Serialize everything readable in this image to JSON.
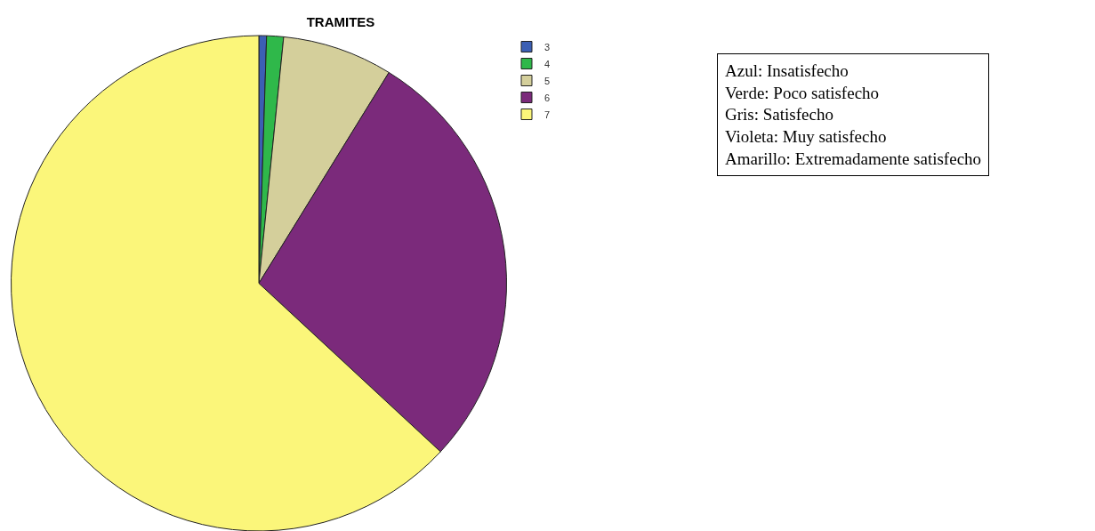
{
  "chart_data": {
    "type": "pie",
    "title": "TRAMITES",
    "categories": [
      "3",
      "4",
      "5",
      "6",
      "7"
    ],
    "values": [
      0.5,
      1.1,
      7.2,
      28.1,
      63.1
    ],
    "colors": [
      "#3c5fb4",
      "#2fb84a",
      "#d4cf9b",
      "#7b2a7b",
      "#fbf67a"
    ],
    "legend": "top right",
    "annotations": [
      "Azul: Insatisfecho\nVerde: Poco satisfecho\nGris: Satisfecho\nVioleta: Muy satisfecho\nAmarillo: Extremadamente satisfecho"
    ]
  }
}
